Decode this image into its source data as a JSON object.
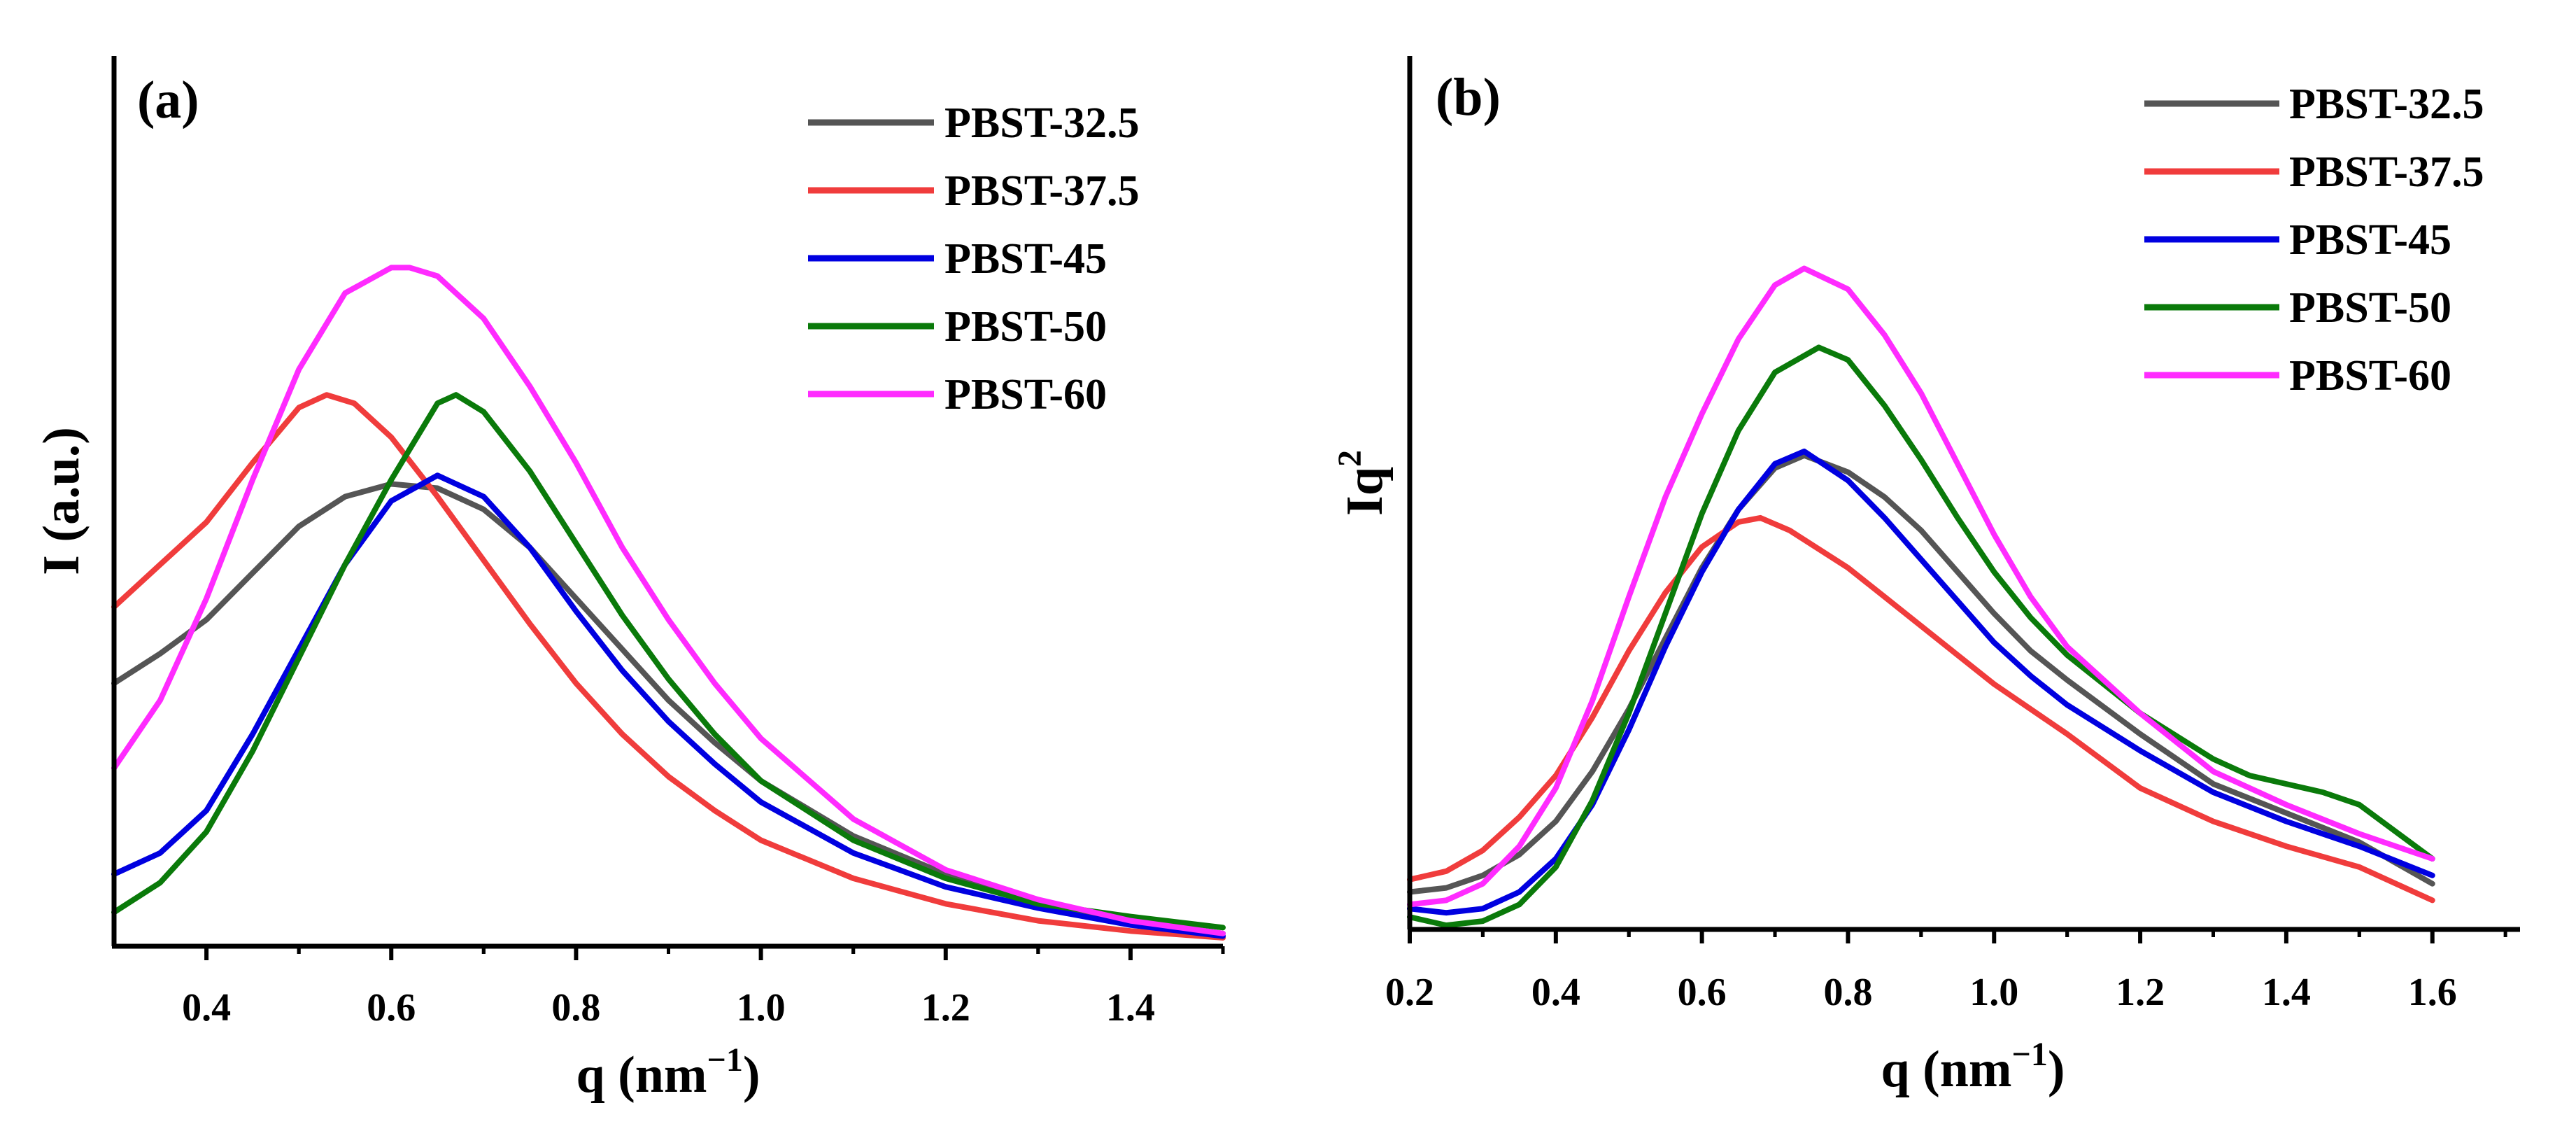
{
  "chart_data": [
    {
      "type": "line",
      "panel_label": "(a)",
      "xlabel": {
        "main": "q (nm",
        "sup": "−1",
        "end": ")"
      },
      "ylabel": {
        "main": "I (a.u.)",
        "sup": ""
      },
      "xlim": [
        0.3,
        1.5
      ],
      "ylim": [
        0,
        100
      ],
      "xticks": [
        0.4,
        0.6,
        0.8,
        1.0,
        1.2,
        1.4
      ],
      "xtick_labels": [
        "0.4",
        "0.6",
        "0.8",
        "1.0",
        "1.2",
        "1.4"
      ],
      "y_ticks_labeled": false,
      "legend": {
        "position": "top-right"
      },
      "series": [
        {
          "name": "PBST-32.5",
          "color": "#555555",
          "x": [
            0.3,
            0.35,
            0.4,
            0.45,
            0.5,
            0.55,
            0.6,
            0.65,
            0.7,
            0.75,
            0.8,
            0.85,
            0.9,
            0.95,
            1.0,
            1.1,
            1.2,
            1.3,
            1.4,
            1.5
          ],
          "y": [
            31,
            34.5,
            38.5,
            44,
            49.5,
            53,
            54.5,
            54,
            51.5,
            47,
            41,
            35,
            29,
            24,
            19.5,
            13,
            8.5,
            5,
            3,
            1.5
          ]
        },
        {
          "name": "PBST-37.5",
          "color": "#f03c3c",
          "x": [
            0.3,
            0.35,
            0.4,
            0.45,
            0.5,
            0.53,
            0.56,
            0.6,
            0.65,
            0.7,
            0.75,
            0.8,
            0.85,
            0.9,
            0.95,
            1.0,
            1.1,
            1.2,
            1.3,
            1.4,
            1.5
          ],
          "y": [
            40,
            45,
            50,
            57,
            63.5,
            65,
            64,
            60,
            53,
            45.5,
            38,
            31,
            25,
            20,
            16,
            12.5,
            8,
            5,
            3,
            1.8,
            1
          ]
        },
        {
          "name": "PBST-45",
          "color": "#0000e0",
          "x": [
            0.3,
            0.35,
            0.4,
            0.45,
            0.5,
            0.55,
            0.6,
            0.65,
            0.7,
            0.75,
            0.8,
            0.85,
            0.9,
            0.95,
            1.0,
            1.1,
            1.2,
            1.3,
            1.4,
            1.5
          ],
          "y": [
            8.5,
            11,
            16,
            25,
            35,
            45,
            52.5,
            55.5,
            53,
            47,
            39.5,
            32.5,
            26.5,
            21.5,
            17,
            11,
            7,
            4.5,
            2.5,
            1.2
          ]
        },
        {
          "name": "PBST-50",
          "color": "#0a7a0a",
          "x": [
            0.3,
            0.35,
            0.4,
            0.45,
            0.5,
            0.55,
            0.6,
            0.65,
            0.67,
            0.7,
            0.75,
            0.8,
            0.85,
            0.9,
            0.95,
            1.0,
            1.1,
            1.2,
            1.3,
            1.4,
            1.5
          ],
          "y": [
            4,
            7.5,
            13.5,
            23,
            34,
            45,
            55,
            64,
            65,
            63,
            56,
            47.5,
            39,
            31.5,
            25,
            19.5,
            12.5,
            8,
            5,
            3.5,
            2.2
          ]
        },
        {
          "name": "PBST-60",
          "color": "#ff2bff",
          "x": [
            0.3,
            0.35,
            0.4,
            0.45,
            0.5,
            0.55,
            0.6,
            0.62,
            0.65,
            0.7,
            0.75,
            0.8,
            0.85,
            0.9,
            0.95,
            1.0,
            1.1,
            1.2,
            1.3,
            1.4,
            1.5
          ],
          "y": [
            21,
            29,
            41,
            55,
            68,
            77,
            80,
            80,
            79,
            74,
            66,
            57,
            47,
            38.5,
            31,
            24.5,
            15,
            9,
            5.5,
            3,
            1.5
          ]
        }
      ]
    },
    {
      "type": "line",
      "panel_label": "(b)",
      "xlabel": {
        "main": "q (nm",
        "sup": "−1",
        "end": ")"
      },
      "ylabel": {
        "main": "Iq",
        "sup": "2"
      },
      "xlim": [
        0.2,
        1.72
      ],
      "ylim": [
        0,
        100
      ],
      "xticks": [
        0.2,
        0.4,
        0.6,
        0.8,
        1.0,
        1.2,
        1.4,
        1.6
      ],
      "xtick_labels": [
        "0.2",
        "0.4",
        "0.6",
        "0.8",
        "1.0",
        "1.2",
        "1.4",
        "1.6"
      ],
      "y_ticks_labeled": false,
      "legend": {
        "position": "top-right"
      },
      "series": [
        {
          "name": "PBST-32.5",
          "color": "#555555",
          "x": [
            0.2,
            0.25,
            0.3,
            0.35,
            0.4,
            0.45,
            0.5,
            0.55,
            0.6,
            0.65,
            0.7,
            0.74,
            0.8,
            0.85,
            0.9,
            0.95,
            1.0,
            1.05,
            1.1,
            1.2,
            1.3,
            1.4,
            1.5,
            1.6
          ],
          "y": [
            4.5,
            5,
            6.5,
            9,
            13,
            19,
            26.5,
            35,
            43.5,
            50.5,
            55.5,
            57,
            55,
            52,
            48,
            43,
            38,
            33.5,
            30,
            23.5,
            17.5,
            14,
            10.5,
            5.5
          ]
        },
        {
          "name": "PBST-37.5",
          "color": "#f03c3c",
          "x": [
            0.2,
            0.25,
            0.3,
            0.35,
            0.4,
            0.45,
            0.5,
            0.55,
            0.6,
            0.65,
            0.68,
            0.72,
            0.8,
            0.85,
            0.9,
            0.95,
            1.0,
            1.05,
            1.1,
            1.2,
            1.3,
            1.4,
            1.5,
            1.6
          ],
          "y": [
            6,
            7,
            9.5,
            13.5,
            18.5,
            25.5,
            33.5,
            40.5,
            46,
            49,
            49.5,
            48,
            43.5,
            40,
            36.5,
            33,
            29.5,
            26.5,
            23.5,
            17,
            13,
            10,
            7.5,
            3.5
          ]
        },
        {
          "name": "PBST-45",
          "color": "#0000e0",
          "x": [
            0.2,
            0.25,
            0.3,
            0.35,
            0.4,
            0.45,
            0.5,
            0.55,
            0.6,
            0.65,
            0.7,
            0.74,
            0.8,
            0.85,
            0.9,
            0.95,
            1.0,
            1.05,
            1.1,
            1.2,
            1.3,
            1.4,
            1.5,
            1.6
          ],
          "y": [
            2.5,
            2,
            2.5,
            4.5,
            8.5,
            15,
            24,
            34,
            43,
            50.5,
            56,
            57.5,
            54,
            49.5,
            44.5,
            39.5,
            34.5,
            30.5,
            27,
            21.5,
            16.5,
            13,
            10,
            6.5
          ]
        },
        {
          "name": "PBST-50",
          "color": "#0a7a0a",
          "x": [
            0.2,
            0.25,
            0.3,
            0.35,
            0.4,
            0.45,
            0.5,
            0.55,
            0.6,
            0.65,
            0.7,
            0.76,
            0.8,
            0.85,
            0.9,
            0.95,
            1.0,
            1.05,
            1.1,
            1.2,
            1.3,
            1.35,
            1.4,
            1.45,
            1.5,
            1.6
          ],
          "y": [
            1.5,
            0.5,
            1,
            3,
            7.5,
            15.5,
            26,
            38,
            50,
            60,
            67,
            70,
            68.5,
            63,
            56.5,
            49.5,
            43,
            37.5,
            33,
            26,
            20.5,
            18.5,
            17.5,
            16.5,
            15,
            8.5
          ]
        },
        {
          "name": "PBST-60",
          "color": "#ff2bff",
          "x": [
            0.2,
            0.25,
            0.3,
            0.35,
            0.4,
            0.45,
            0.5,
            0.55,
            0.6,
            0.65,
            0.7,
            0.74,
            0.8,
            0.85,
            0.9,
            0.95,
            1.0,
            1.05,
            1.1,
            1.2,
            1.3,
            1.4,
            1.5,
            1.6
          ],
          "y": [
            3,
            3.5,
            5.5,
            10,
            17,
            27.5,
            40,
            52,
            62,
            71,
            77.5,
            79.5,
            77,
            71.5,
            64.5,
            56,
            47.5,
            40,
            34,
            26,
            19,
            15,
            11.5,
            8.5
          ]
        }
      ]
    }
  ]
}
